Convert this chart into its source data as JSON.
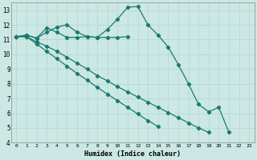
{
  "xlabel": "Humidex (Indice chaleur)",
  "bg_color": "#cbe8e4",
  "grid_color": "#b8d8d2",
  "line_color": "#1a7a6e",
  "xlim": [
    -0.5,
    23.5
  ],
  "ylim": [
    4,
    13.5
  ],
  "xticks": [
    0,
    1,
    2,
    3,
    4,
    5,
    6,
    7,
    8,
    9,
    10,
    11,
    12,
    13,
    14,
    15,
    16,
    17,
    18,
    19,
    20,
    21,
    22,
    23
  ],
  "yticks": [
    4,
    5,
    6,
    7,
    8,
    9,
    10,
    11,
    12,
    13
  ],
  "line1_x": [
    0,
    1,
    2,
    3,
    4,
    5,
    6,
    7,
    8,
    9,
    10,
    11,
    12,
    13,
    14,
    15,
    16,
    17,
    18,
    19,
    20,
    21
  ],
  "line1_y": [
    11.2,
    11.3,
    11.1,
    11.8,
    11.5,
    11.15,
    11.15,
    11.2,
    11.15,
    11.7,
    12.4,
    13.2,
    13.25,
    12.0,
    11.3,
    10.5,
    9.3,
    8.0,
    6.6,
    6.1,
    6.4,
    4.7
  ],
  "line2_x": [
    0,
    1,
    2,
    3,
    4,
    5,
    6,
    7,
    8,
    9,
    10,
    11
  ],
  "line2_y": [
    11.2,
    11.3,
    11.1,
    11.5,
    11.85,
    12.0,
    11.5,
    11.2,
    11.15,
    11.15,
    11.15,
    11.2
  ],
  "line3_x": [
    0,
    1,
    2,
    3,
    4,
    5,
    6,
    7,
    8,
    9,
    10,
    11,
    12,
    13,
    14,
    15,
    16,
    17,
    18,
    19,
    20,
    21,
    22,
    23
  ],
  "line3_y": [
    11.2,
    11.2,
    10.85,
    10.55,
    10.2,
    9.8,
    9.4,
    9.0,
    8.55,
    8.2,
    7.8,
    7.45,
    7.1,
    6.75,
    6.4,
    6.05,
    5.7,
    5.35,
    5.0,
    4.7,
    null,
    null,
    null,
    null
  ],
  "line4_x": [
    0,
    1,
    2,
    3,
    4,
    5,
    6,
    7,
    8,
    9,
    10,
    11,
    12,
    13,
    14,
    15,
    16,
    17,
    18,
    19,
    20,
    21,
    22,
    23
  ],
  "line4_y": [
    11.2,
    11.2,
    10.7,
    10.2,
    9.7,
    9.2,
    8.7,
    8.25,
    7.75,
    7.3,
    6.85,
    6.4,
    5.95,
    5.5,
    5.1,
    null,
    null,
    null,
    null,
    null,
    null,
    null,
    null,
    null
  ]
}
